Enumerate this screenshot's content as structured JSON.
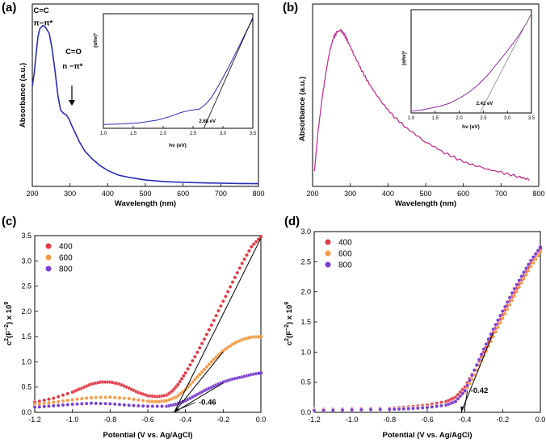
{
  "colors": {
    "blue": "#2b2bb8",
    "magenta": "#c2338f",
    "purple_inset": "#8a2f9e",
    "red": "#e03a48",
    "orange": "#f59a45",
    "violet": "#7a3fd1",
    "fit": "#000000"
  },
  "chart_data": [
    {
      "id": "a",
      "panel_label": "(a)",
      "type": "line",
      "xlabel": "Wavelength (nm)",
      "ylabel": "Absorbance (a.u.)",
      "xlim": [
        200,
        800
      ],
      "xticks": [
        "200",
        "300",
        "400",
        "500",
        "600",
        "700",
        "800"
      ],
      "series": [
        {
          "name": "Absorbance",
          "x": [
            200,
            205,
            210,
            215,
            220,
            228,
            235,
            245,
            252,
            260,
            268,
            275,
            282,
            290,
            298,
            305,
            315,
            325,
            340,
            360,
            380,
            400,
            430,
            460,
            500,
            550,
            600,
            650,
            700,
            750,
            800
          ],
          "y": [
            0.62,
            0.7,
            0.82,
            0.93,
            0.98,
            1.0,
            0.99,
            0.95,
            0.86,
            0.72,
            0.56,
            0.47,
            0.45,
            0.44,
            0.41,
            0.37,
            0.32,
            0.27,
            0.21,
            0.16,
            0.12,
            0.09,
            0.06,
            0.045,
            0.03,
            0.02,
            0.015,
            0.012,
            0.01,
            0.008,
            0.007
          ]
        }
      ],
      "annotations": [
        {
          "text": "C=C",
          "x": 203,
          "y": 1.08
        },
        {
          "text": "π−π*",
          "x": 203,
          "y": 1.0
        },
        {
          "text": "C=O",
          "x": 288,
          "y": 0.82
        },
        {
          "text": "n −π*",
          "x": 280,
          "y": 0.73
        }
      ],
      "inset": {
        "type": "line",
        "xlabel": "hν (eV)",
        "ylabel": "(αhν)²",
        "xlim": [
          1.0,
          3.5
        ],
        "xticks": [
          "1.0",
          "1.5",
          "2.0",
          "2.5",
          "3.0",
          "3.5"
        ],
        "ylim": [
          0,
          1
        ],
        "x": [
          1.0,
          1.3,
          1.6,
          1.9,
          2.1,
          2.3,
          2.45,
          2.6,
          2.7,
          2.8,
          2.9,
          3.0,
          3.1,
          3.2,
          3.3,
          3.4,
          3.5
        ],
        "y": [
          0.02,
          0.025,
          0.035,
          0.06,
          0.09,
          0.13,
          0.15,
          0.16,
          0.2,
          0.26,
          0.35,
          0.45,
          0.55,
          0.66,
          0.77,
          0.88,
          0.99
        ],
        "fit_x": [
          2.68,
          3.5
        ],
        "fit_y": [
          0.0,
          1.0
        ],
        "gap_label": "2.68 eV",
        "gap_value": 2.68
      }
    },
    {
      "id": "b",
      "panel_label": "(b)",
      "type": "line",
      "xlabel": "Wavelength (nm)",
      "ylabel": "Absorbance (a.u.)",
      "xlim": [
        200,
        800
      ],
      "xticks": [
        "200",
        "300",
        "400",
        "500",
        "600",
        "700",
        "800"
      ],
      "series": [
        {
          "name": "Absorbance",
          "x": [
            205,
            215,
            225,
            235,
            245,
            255,
            265,
            275,
            285,
            295,
            310,
            330,
            350,
            380,
            410,
            450,
            500,
            550,
            600,
            650,
            700,
            750,
            780
          ],
          "y": [
            0.08,
            0.35,
            0.55,
            0.72,
            0.86,
            0.95,
            0.99,
            1.0,
            0.97,
            0.92,
            0.84,
            0.74,
            0.65,
            0.54,
            0.45,
            0.36,
            0.27,
            0.2,
            0.14,
            0.1,
            0.07,
            0.04,
            0.02
          ]
        }
      ],
      "inset": {
        "type": "line",
        "xlabel": "hν (eV)",
        "ylabel": "(αhν)²",
        "xlim": [
          1.0,
          3.5
        ],
        "xticks": [
          "1.0",
          "1.5",
          "2.0",
          "2.5",
          "3.0",
          "3.5"
        ],
        "ylim": [
          0,
          1
        ],
        "x": [
          1.0,
          1.2,
          1.4,
          1.6,
          1.8,
          2.0,
          2.2,
          2.4,
          2.6,
          2.8,
          3.0,
          3.2,
          3.4,
          3.5
        ],
        "y": [
          0.01,
          0.02,
          0.04,
          0.06,
          0.09,
          0.14,
          0.2,
          0.28,
          0.38,
          0.5,
          0.62,
          0.75,
          0.9,
          1.0
        ],
        "fit_x": [
          2.42,
          3.5
        ],
        "fit_y": [
          0.0,
          1.0
        ],
        "gap_label": "2.42 eV",
        "gap_value": 2.42
      }
    },
    {
      "id": "c",
      "panel_label": "(c)",
      "type": "scatter",
      "xlabel": "Potential (V vs. Ag/AgCl)",
      "ylabel_main": "c",
      "ylabel_sup1": "2",
      "ylabel_mid": "(F",
      "ylabel_sup2": "−2",
      "ylabel_end": ") x 10",
      "ylabel_sup3": "9",
      "xlim": [
        -1.2,
        0.0
      ],
      "ylim": [
        0,
        3.5
      ],
      "xticks": [
        "-1.2",
        "-1.0",
        "-0.8",
        "-0.6",
        "-0.4",
        "-0.2",
        "0.0"
      ],
      "yticks": [
        "0.0",
        "0.5",
        "1.0",
        "1.5",
        "2.0",
        "2.5",
        "3.0",
        "3.5"
      ],
      "legend": [
        "400",
        "600",
        "800"
      ],
      "series": [
        {
          "name": "400",
          "x": [
            -1.2,
            -1.1,
            -1.0,
            -0.95,
            -0.9,
            -0.85,
            -0.8,
            -0.75,
            -0.7,
            -0.65,
            -0.6,
            -0.55,
            -0.5,
            -0.47,
            -0.44,
            -0.4,
            -0.35,
            -0.3,
            -0.25,
            -0.2,
            -0.15,
            -0.1,
            -0.05,
            0.0
          ],
          "y": [
            0.2,
            0.28,
            0.4,
            0.48,
            0.56,
            0.6,
            0.6,
            0.56,
            0.48,
            0.39,
            0.33,
            0.31,
            0.34,
            0.42,
            0.55,
            0.78,
            1.1,
            1.45,
            1.82,
            2.2,
            2.58,
            2.95,
            3.28,
            3.48
          ]
        },
        {
          "name": "600",
          "x": [
            -1.2,
            -1.1,
            -1.0,
            -0.9,
            -0.8,
            -0.7,
            -0.6,
            -0.55,
            -0.5,
            -0.45,
            -0.4,
            -0.35,
            -0.3,
            -0.25,
            -0.2,
            -0.15,
            -0.1,
            -0.05,
            0.0
          ],
          "y": [
            0.15,
            0.2,
            0.25,
            0.29,
            0.3,
            0.27,
            0.22,
            0.21,
            0.23,
            0.3,
            0.45,
            0.65,
            0.85,
            1.05,
            1.22,
            1.35,
            1.44,
            1.49,
            1.5
          ]
        },
        {
          "name": "800",
          "x": [
            -1.2,
            -1.1,
            -1.0,
            -0.9,
            -0.8,
            -0.7,
            -0.6,
            -0.5,
            -0.45,
            -0.4,
            -0.35,
            -0.3,
            -0.25,
            -0.2,
            -0.15,
            -0.1,
            -0.05,
            0.0
          ],
          "y": [
            0.1,
            0.13,
            0.16,
            0.18,
            0.17,
            0.14,
            0.12,
            0.12,
            0.16,
            0.23,
            0.33,
            0.43,
            0.52,
            0.6,
            0.66,
            0.7,
            0.75,
            0.78
          ]
        }
      ],
      "fit_lines": [
        {
          "x": [
            -0.46,
            0.0
          ],
          "y": [
            0.0,
            3.45
          ]
        },
        {
          "x": [
            -0.46,
            -0.2
          ],
          "y": [
            0.0,
            1.2
          ]
        },
        {
          "x": [
            -0.46,
            -0.2
          ],
          "y": [
            0.0,
            0.58
          ]
        }
      ],
      "annotation": {
        "text": "-0.46",
        "x": -0.33,
        "y": 0.15,
        "arrow_to_x": -0.46,
        "arrow_to_y": 0.03
      }
    },
    {
      "id": "d",
      "panel_label": "(d)",
      "type": "scatter",
      "xlabel": "Potential (V vs. Ag/AgCl)",
      "ylabel_main": "c",
      "ylabel_sup1": "2",
      "ylabel_mid": "(F",
      "ylabel_sup2": "−2",
      "ylabel_end": ") x 10",
      "ylabel_sup3": "9",
      "xlim": [
        -1.2,
        0.0
      ],
      "ylim": [
        0,
        3.0
      ],
      "xticks": [
        "-1.2",
        "-1.0",
        "-0.8",
        "-0.6",
        "-0.4",
        "-0.2",
        "0.0"
      ],
      "yticks": [
        "0.0",
        "0.5",
        "1.0",
        "1.5",
        "2.0",
        "2.5",
        "3.0"
      ],
      "legend": [
        "400",
        "600",
        "800"
      ],
      "series": [
        {
          "name": "400",
          "x": [
            -1.2,
            -1.0,
            -0.8,
            -0.7,
            -0.6,
            -0.5,
            -0.45,
            -0.4,
            -0.35,
            -0.3,
            -0.25,
            -0.2,
            -0.15,
            -0.1,
            -0.05,
            0.0
          ],
          "y": [
            0.05,
            0.06,
            0.07,
            0.09,
            0.12,
            0.18,
            0.25,
            0.42,
            0.7,
            1.0,
            1.32,
            1.62,
            1.92,
            2.2,
            2.48,
            2.72
          ]
        },
        {
          "name": "600",
          "x": [
            -1.2,
            -1.0,
            -0.8,
            -0.7,
            -0.6,
            -0.5,
            -0.45,
            -0.4,
            -0.35,
            -0.3,
            -0.25,
            -0.2,
            -0.15,
            -0.1,
            -0.05,
            0.0
          ],
          "y": [
            0.04,
            0.05,
            0.06,
            0.07,
            0.09,
            0.13,
            0.19,
            0.34,
            0.62,
            0.94,
            1.26,
            1.56,
            1.86,
            2.15,
            2.42,
            2.66
          ]
        },
        {
          "name": "800",
          "x": [
            -1.2,
            -1.0,
            -0.8,
            -0.7,
            -0.6,
            -0.5,
            -0.45,
            -0.4,
            -0.35,
            -0.3,
            -0.25,
            -0.2,
            -0.15,
            -0.1,
            -0.05,
            0.0
          ],
          "y": [
            0.03,
            0.04,
            0.05,
            0.06,
            0.08,
            0.12,
            0.18,
            0.36,
            0.7,
            1.05,
            1.38,
            1.68,
            1.98,
            2.26,
            2.52,
            2.74
          ]
        }
      ],
      "fit_lines": [
        {
          "x": [
            -0.42,
            -0.25
          ],
          "y": [
            0.0,
            1.32
          ]
        }
      ],
      "annotation": {
        "text": "-0.42",
        "x": -0.37,
        "y": 0.32,
        "arrow_to_x": -0.42,
        "arrow_to_y": 0.02
      }
    }
  ]
}
